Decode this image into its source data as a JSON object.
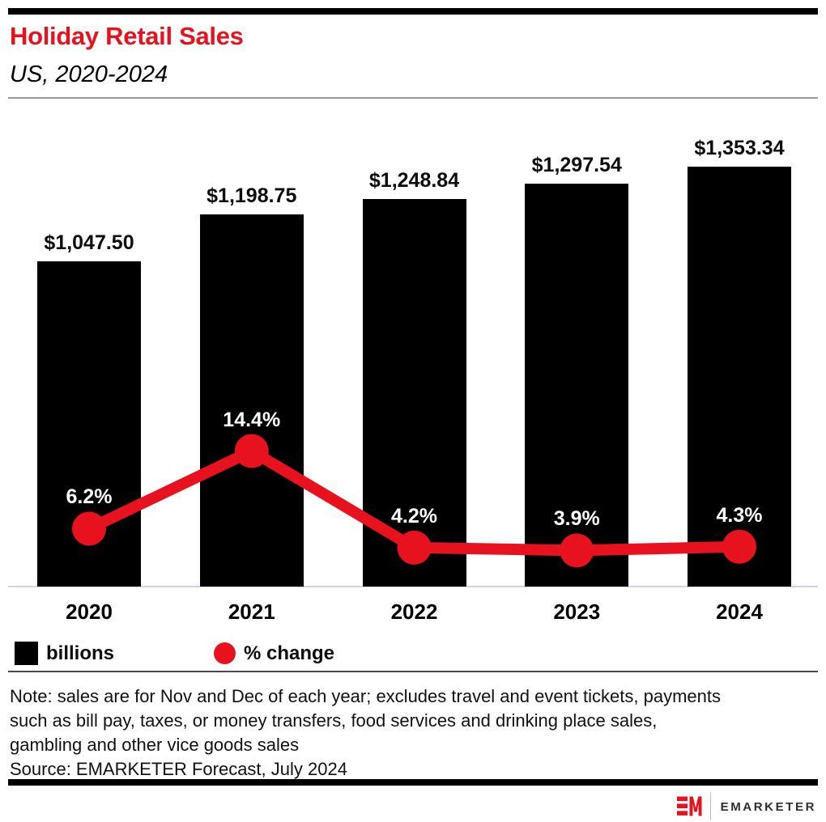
{
  "header": {
    "title": "Holiday Retail Sales",
    "subtitle": "US, 2020-2024"
  },
  "chart_data": {
    "type": "bar",
    "combo": "bar-line",
    "title": "Holiday Retail Sales",
    "subtitle": "US, 2020-2024",
    "categories": [
      "2020",
      "2021",
      "2022",
      "2023",
      "2024"
    ],
    "series": [
      {
        "name": "billions",
        "type": "bar",
        "unit": "US$ billions",
        "values": [
          1047.5,
          1198.75,
          1248.84,
          1297.54,
          1353.34
        ],
        "labels": [
          "$1,047.50",
          "$1,198.75",
          "$1,248.84",
          "$1,297.54",
          "$1,353.34"
        ],
        "color": "#000000",
        "ylim": [
          0,
          1400
        ]
      },
      {
        "name": "% change",
        "type": "line",
        "unit": "percent",
        "values": [
          6.2,
          14.4,
          4.2,
          3.9,
          4.3
        ],
        "labels": [
          "6.2%",
          "14.4%",
          "4.2%",
          "3.9%",
          "4.3%"
        ],
        "color": "#e8121f",
        "ylim": [
          0,
          16
        ]
      }
    ],
    "grid": false,
    "legend_position": "bottom-left",
    "value_labels_shown": true
  },
  "legend": {
    "bars_label": "billions",
    "line_label": "% change"
  },
  "footer": {
    "note_lines": [
      "Note: sales are for Nov and Dec of each year; excludes travel and event tickets, payments",
      "such as bill pay, taxes, or money transfers, food services and drinking place sales,",
      "gambling and other vice goods sales"
    ],
    "source": "Source: EMARKETER Forecast, July 2024"
  },
  "brand": {
    "logo_text": "EMARKETER",
    "logo_mark": "EM-monogram",
    "red": "#e8121f"
  }
}
